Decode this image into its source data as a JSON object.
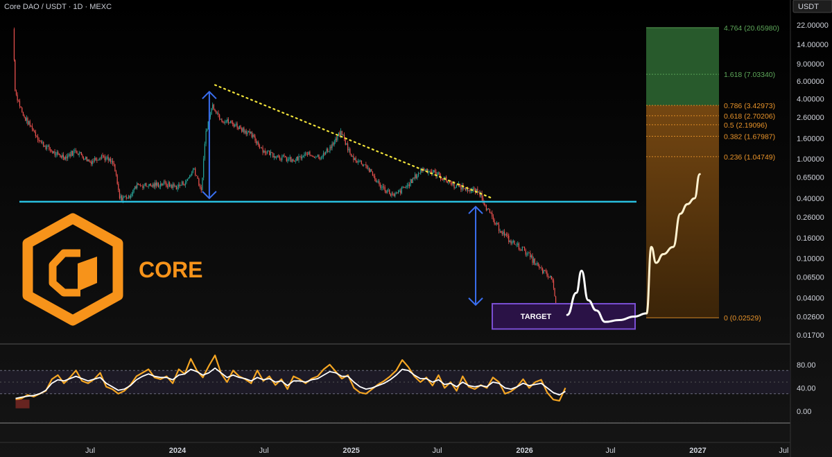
{
  "header": {
    "symbol": "Core DAO / USDT · 1D · MEXC",
    "currency_badge": "USDT"
  },
  "logo": {
    "text": "CORE",
    "color": "#f7931a"
  },
  "target_label": "TARGET",
  "chart_data": {
    "type": "line",
    "price_axis": {
      "scale": "log",
      "ticks": [
        "22.00000",
        "14.00000",
        "9.00000",
        "6.00000",
        "4.00000",
        "2.60000",
        "1.60000",
        "1.00000",
        "0.65000",
        "0.40000",
        "0.26000",
        "0.16000",
        "0.10000",
        "0.06500",
        "0.04000",
        "0.02600",
        "0.01700"
      ]
    },
    "time_axis": {
      "ticks": [
        "Jul",
        "2024",
        "Jul",
        "2025",
        "Jul",
        "2026",
        "Jul",
        "2027",
        "Jul"
      ]
    },
    "fib_levels": [
      {
        "label": "4.764 (20.65980)",
        "value": 20.6598,
        "color": "#5ea85a"
      },
      {
        "label": "1.618 (7.03340)",
        "value": 7.0334,
        "color": "#5ea85a"
      },
      {
        "label": "0.786 (3.42973)",
        "value": 3.42973,
        "color": "#e8932a"
      },
      {
        "label": "0.618 (2.70206)",
        "value": 2.70206,
        "color": "#e8932a"
      },
      {
        "label": "0.5 (2.19096)",
        "value": 2.19096,
        "color": "#e8932a"
      },
      {
        "label": "0.382 (1.67987)",
        "value": 1.67987,
        "color": "#e8932a"
      },
      {
        "label": "0.236 (1.04749)",
        "value": 1.04749,
        "color": "#e8932a"
      },
      {
        "label": "0 (0.02529)",
        "value": 0.02529,
        "color": "#e8932a"
      }
    ],
    "support_line": {
      "value": 0.37,
      "color": "#29c0e0"
    },
    "downtrend_line": {
      "color": "#f2e33a"
    },
    "price_series": {
      "name": "",
      "points": [
        {
          "t": "2023-01-20",
          "v": 20.0
        },
        {
          "t": "2023-01-24",
          "v": 4.8
        },
        {
          "t": "2023-02-10",
          "v": 2.7
        },
        {
          "t": "2023-03-01",
          "v": 2.0
        },
        {
          "t": "2023-03-20",
          "v": 1.45
        },
        {
          "t": "2023-04-20",
          "v": 1.1
        },
        {
          "t": "2023-05-10",
          "v": 1.05
        },
        {
          "t": "2023-06-01",
          "v": 1.2
        },
        {
          "t": "2023-07-01",
          "v": 0.93
        },
        {
          "t": "2023-07-25",
          "v": 1.08
        },
        {
          "t": "2023-08-20",
          "v": 0.88
        },
        {
          "t": "2023-09-01",
          "v": 0.4
        },
        {
          "t": "2023-09-20",
          "v": 0.42
        },
        {
          "t": "2023-10-10",
          "v": 0.55
        },
        {
          "t": "2023-11-01",
          "v": 0.53
        },
        {
          "t": "2023-12-01",
          "v": 0.56
        },
        {
          "t": "2024-01-01",
          "v": 0.52
        },
        {
          "t": "2024-01-20",
          "v": 0.6
        },
        {
          "t": "2024-02-05",
          "v": 0.8
        },
        {
          "t": "2024-02-20",
          "v": 0.48
        },
        {
          "t": "2024-03-01",
          "v": 1.9
        },
        {
          "t": "2024-03-15",
          "v": 3.5
        },
        {
          "t": "2024-04-01",
          "v": 2.5
        },
        {
          "t": "2024-05-01",
          "v": 2.2
        },
        {
          "t": "2024-06-01",
          "v": 1.8
        },
        {
          "t": "2024-07-01",
          "v": 1.2
        },
        {
          "t": "2024-08-01",
          "v": 1.05
        },
        {
          "t": "2024-09-01",
          "v": 0.95
        },
        {
          "t": "2024-10-01",
          "v": 1.1
        },
        {
          "t": "2024-11-01",
          "v": 1.05
        },
        {
          "t": "2024-12-01",
          "v": 1.55
        },
        {
          "t": "2024-12-10",
          "v": 1.9
        },
        {
          "t": "2025-01-01",
          "v": 1.05
        },
        {
          "t": "2025-02-01",
          "v": 0.85
        },
        {
          "t": "2025-03-01",
          "v": 0.55
        },
        {
          "t": "2025-04-01",
          "v": 0.42
        },
        {
          "t": "2025-05-01",
          "v": 0.55
        },
        {
          "t": "2025-06-01",
          "v": 0.8
        },
        {
          "t": "2025-07-01",
          "v": 0.7
        },
        {
          "t": "2025-08-01",
          "v": 0.55
        },
        {
          "t": "2025-09-01",
          "v": 0.5
        },
        {
          "t": "2025-10-01",
          "v": 0.45
        },
        {
          "t": "2025-10-10",
          "v": 0.34
        },
        {
          "t": "2025-11-01",
          "v": 0.22
        },
        {
          "t": "2025-12-01",
          "v": 0.15
        },
        {
          "t": "2026-01-01",
          "v": 0.12
        },
        {
          "t": "2026-02-01",
          "v": 0.08
        },
        {
          "t": "2026-03-01",
          "v": 0.06
        },
        {
          "t": "2026-03-10",
          "v": 0.028
        },
        {
          "t": "2026-03-25",
          "v": 0.03
        }
      ]
    },
    "projection_path": [
      {
        "t": "2026-04-01",
        "v": 0.027
      },
      {
        "t": "2026-04-20",
        "v": 0.045
      },
      {
        "t": "2026-05-01",
        "v": 0.075
      },
      {
        "t": "2026-05-15",
        "v": 0.038
      },
      {
        "t": "2026-06-01",
        "v": 0.03
      },
      {
        "t": "2026-06-20",
        "v": 0.023
      },
      {
        "t": "2026-07-20",
        "v": 0.024
      },
      {
        "t": "2026-08-20",
        "v": 0.026
      },
      {
        "t": "2026-09-15",
        "v": 0.028
      },
      {
        "t": "2026-09-25",
        "v": 0.13
      },
      {
        "t": "2026-10-05",
        "v": 0.09
      },
      {
        "t": "2026-10-20",
        "v": 0.11
      },
      {
        "t": "2026-11-10",
        "v": 0.13
      },
      {
        "t": "2026-11-25",
        "v": 0.28
      },
      {
        "t": "2026-12-10",
        "v": 0.35
      },
      {
        "t": "2026-12-25",
        "v": 0.4
      },
      {
        "t": "2027-01-05",
        "v": 0.7
      }
    ],
    "oscillator": {
      "ticks": [
        "80.00",
        "40.00",
        "0.00"
      ],
      "upper_band": 70,
      "lower_band": 30,
      "series": [
        {
          "name": "",
          "color": "#f5a623",
          "values": [
            20,
            22,
            28,
            25,
            30,
            35,
            55,
            62,
            48,
            58,
            70,
            52,
            48,
            55,
            66,
            42,
            38,
            30,
            35,
            45,
            60,
            66,
            72,
            58,
            55,
            60,
            48,
            72,
            64,
            90,
            70,
            58,
            78,
            96,
            65,
            50,
            70,
            60,
            55,
            48,
            70,
            52,
            60,
            45,
            55,
            38,
            60,
            55,
            48,
            56,
            60,
            72,
            80,
            68,
            56,
            62,
            40,
            32,
            30,
            38,
            46,
            52,
            60,
            70,
            88,
            76,
            60,
            50,
            58,
            44,
            62,
            40,
            50,
            35,
            60,
            42,
            38,
            45,
            40,
            58,
            50,
            30,
            34,
            42,
            55,
            40,
            50,
            54,
            32,
            20,
            18,
            40
          ]
        },
        {
          "name": "",
          "color": "#ffffff",
          "values": [
            22,
            24,
            26,
            27,
            30,
            36,
            48,
            54,
            52,
            56,
            60,
            56,
            52,
            55,
            58,
            48,
            42,
            36,
            38,
            44,
            54,
            60,
            64,
            60,
            58,
            58,
            54,
            62,
            64,
            72,
            68,
            62,
            66,
            74,
            66,
            58,
            62,
            58,
            56,
            52,
            58,
            54,
            56,
            50,
            52,
            44,
            52,
            52,
            50,
            54,
            56,
            62,
            68,
            66,
            60,
            60,
            50,
            42,
            38,
            40,
            44,
            48,
            54,
            62,
            72,
            70,
            62,
            56,
            56,
            50,
            54,
            46,
            48,
            42,
            50,
            44,
            42,
            44,
            42,
            50,
            48,
            40,
            38,
            42,
            48,
            44,
            46,
            48,
            40,
            32,
            28,
            34
          ]
        }
      ]
    }
  }
}
